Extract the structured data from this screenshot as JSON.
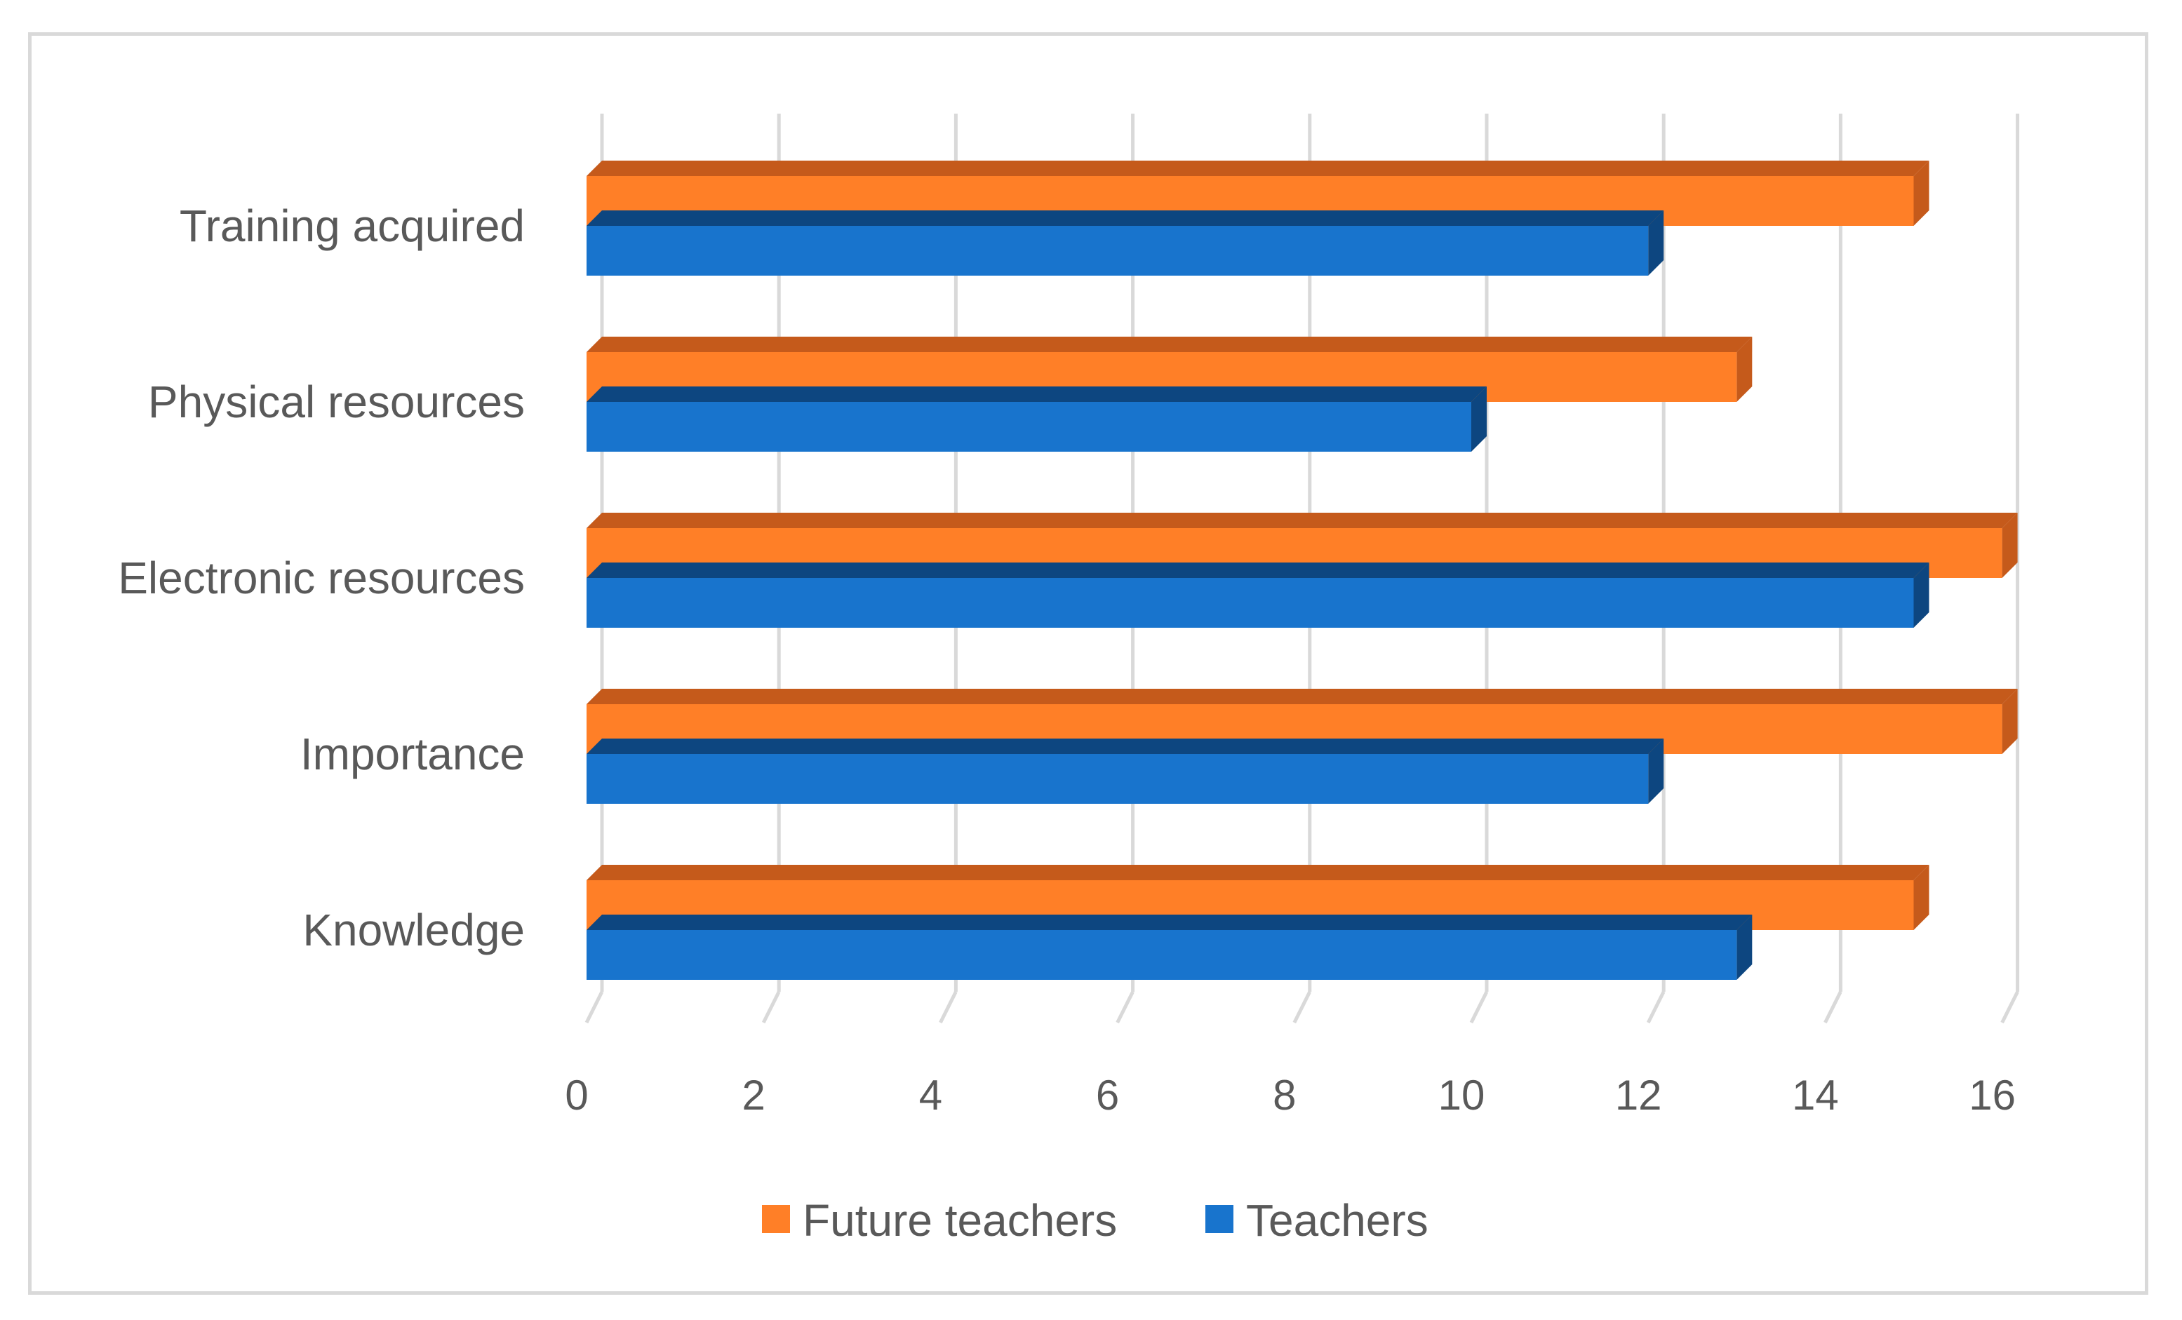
{
  "chart_data": {
    "type": "bar",
    "orientation": "horizontal",
    "style": "3d-clustered",
    "categories": [
      "Training acquired",
      "Physical resources",
      "Electronic resources",
      "Importance",
      "Knowledge"
    ],
    "series": [
      {
        "name": "Future teachers",
        "color": "#FF7F27",
        "side_color": "#C55A1B",
        "values": [
          15,
          13,
          16,
          16,
          15
        ]
      },
      {
        "name": "Teachers",
        "color": "#1874CD",
        "side_color": "#0D4680",
        "values": [
          12,
          10,
          15,
          12,
          13
        ]
      }
    ],
    "x_ticks": [
      "0",
      "2",
      "4",
      "6",
      "8",
      "10",
      "12",
      "14",
      "16"
    ],
    "xlim": [
      0,
      16
    ],
    "grid": "vertical",
    "legend_position": "bottom"
  }
}
